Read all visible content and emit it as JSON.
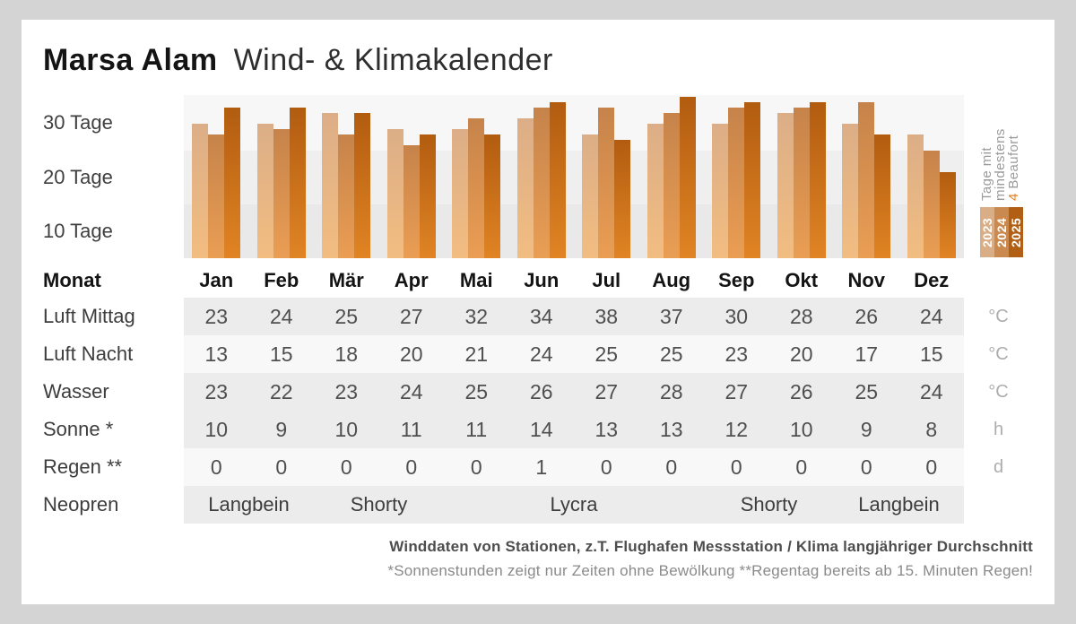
{
  "title": {
    "location": "Marsa Alam",
    "suffix": "Wind- & Klimakalender"
  },
  "chart_data": {
    "type": "bar",
    "title": "Tage mit mindestens 4 Beaufort",
    "categories": [
      "Jan",
      "Feb",
      "Mär",
      "Apr",
      "Mai",
      "Jun",
      "Jul",
      "Aug",
      "Sep",
      "Okt",
      "Nov",
      "Dez"
    ],
    "series": [
      {
        "name": "2023",
        "color_top": "#dcae87",
        "color_bottom": "#f2bd81",
        "values": [
          25,
          25,
          27,
          24,
          24,
          26,
          23,
          25,
          25,
          27,
          25,
          23
        ]
      },
      {
        "name": "2024",
        "color_top": "#c6834a",
        "color_bottom": "#ea9e54",
        "values": [
          23,
          24,
          23,
          21,
          26,
          28,
          28,
          27,
          28,
          28,
          29,
          20
        ]
      },
      {
        "name": "2025",
        "color_top": "#b25c10",
        "color_bottom": "#e08424",
        "values": [
          28,
          28,
          27,
          23,
          23,
          29,
          22,
          30,
          29,
          29,
          23,
          16
        ]
      }
    ],
    "y_ticks": [
      "30 Tage",
      "20 Tage",
      "10 Tage"
    ],
    "ylim": [
      0,
      30.5
    ],
    "unit_per_day": "Tage",
    "grid": "banded-horizontal",
    "legend_position": "right"
  },
  "legend": {
    "line1": "Tage mit",
    "line2": "mindestens",
    "line3_number": "4",
    "line3_text": " Beaufort",
    "blocks": [
      {
        "label": "2023",
        "color": "#d9ad85"
      },
      {
        "label": "2024",
        "color": "#c9894f"
      },
      {
        "label": "2025",
        "color": "#b25f16"
      }
    ]
  },
  "table": {
    "month_header_label": "Monat",
    "months": [
      "Jan",
      "Feb",
      "Mär",
      "Apr",
      "Mai",
      "Jun",
      "Jul",
      "Aug",
      "Sep",
      "Okt",
      "Nov",
      "Dez"
    ],
    "rows": [
      {
        "label": "Luft Mittag",
        "unit": "°C",
        "shade": "dark",
        "values": [
          "23",
          "24",
          "25",
          "27",
          "32",
          "34",
          "38",
          "37",
          "30",
          "28",
          "26",
          "24"
        ]
      },
      {
        "label": "Luft Nacht",
        "unit": "°C",
        "shade": "light",
        "values": [
          "13",
          "15",
          "18",
          "20",
          "21",
          "24",
          "25",
          "25",
          "23",
          "20",
          "17",
          "15"
        ]
      },
      {
        "label": "Wasser",
        "unit": "°C",
        "shade": "dark",
        "values": [
          "23",
          "22",
          "23",
          "24",
          "25",
          "26",
          "27",
          "28",
          "27",
          "26",
          "25",
          "24"
        ]
      },
      {
        "label": "Sonne *",
        "unit": "h",
        "shade": "dark",
        "values": [
          "10",
          "9",
          "10",
          "11",
          "11",
          "14",
          "13",
          "13",
          "12",
          "10",
          "9",
          "8"
        ]
      },
      {
        "label": "Regen **",
        "unit": "d",
        "shade": "light",
        "values": [
          "0",
          "0",
          "0",
          "0",
          "0",
          "1",
          "0",
          "0",
          "0",
          "0",
          "0",
          "0"
        ]
      }
    ],
    "neopren": {
      "label": "Neopren",
      "shade": "dark",
      "spans": [
        {
          "text": "Langbein",
          "cols": 2
        },
        {
          "text": "Shorty",
          "cols": 2
        },
        {
          "text": "Lycra",
          "cols": 4
        },
        {
          "text": "Shorty",
          "cols": 2
        },
        {
          "text": "Langbein",
          "cols": 2
        }
      ]
    }
  },
  "footer": {
    "line1": "Winddaten von Stationen, z.T. Flughafen Messstation / Klima langjähriger Durchschnitt",
    "line2": "*Sonnenstunden zeigt nur Zeiten ohne Bewölkung  **Regentag bereits ab 15. Minuten Regen!"
  },
  "colors": {
    "page_bg": "#d4d4d4",
    "card_bg": "#ffffff",
    "band_top": "#f7f7f7",
    "band_mid": "#efefef",
    "band_bottom": "#e9e9e9",
    "row_dark": "#ececec",
    "row_light": "#f8f8f8",
    "accent_orange": "#e0801f"
  }
}
